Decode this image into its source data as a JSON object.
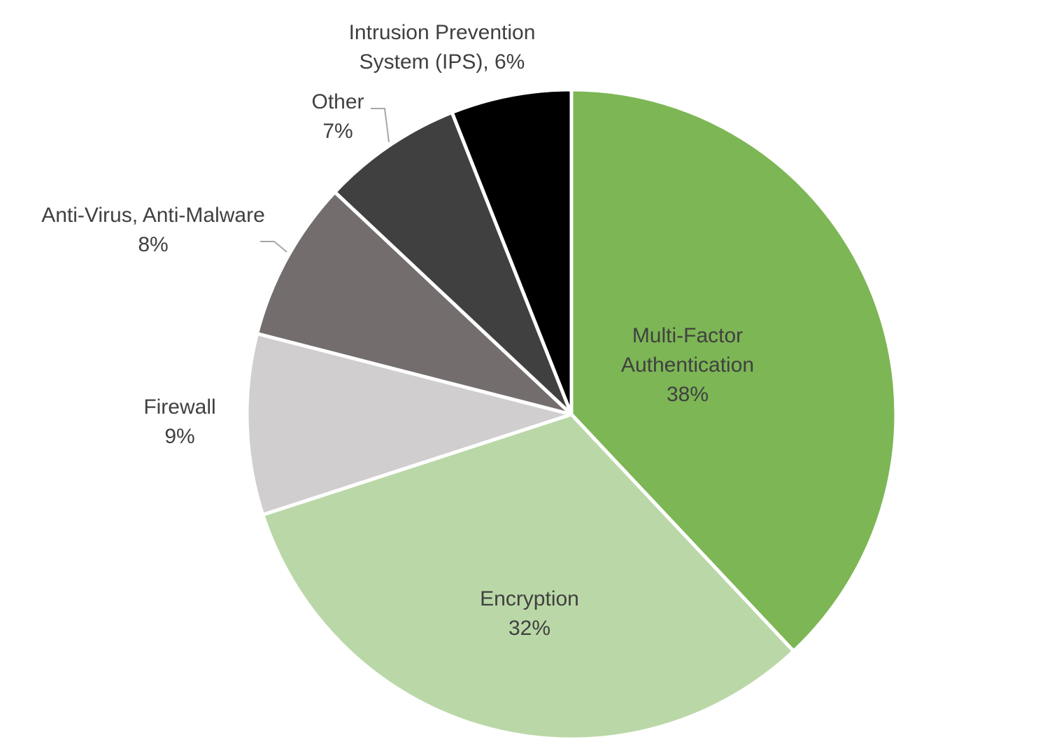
{
  "chart_data": {
    "type": "pie",
    "title": "",
    "slices": [
      {
        "name": "Multi-Factor Authentication",
        "value": 38,
        "line1": "Multi-Factor",
        "line2": "Authentication",
        "pct": "38%",
        "color": "#7DB655"
      },
      {
        "name": "Encryption",
        "value": 32,
        "line1": "Encryption",
        "line2": "",
        "pct": "32%",
        "color": "#BAD8A7"
      },
      {
        "name": "Firewall",
        "value": 9,
        "line1": "Firewall",
        "line2": "",
        "pct": "9%",
        "color": "#D0CECF"
      },
      {
        "name": "Anti-Virus, Anti-Malware",
        "value": 8,
        "line1": "Anti-Virus, Anti-Malware",
        "line2": "",
        "pct": "8%",
        "color": "#736E6D"
      },
      {
        "name": "Other",
        "value": 7,
        "line1": "Other",
        "line2": "",
        "pct": "7%",
        "color": "#404040"
      },
      {
        "name": "Intrusion Prevention System (IPS)",
        "value": 6,
        "line1": "Intrusion Prevention",
        "line2": "System (IPS), 6%",
        "pct": "",
        "color": "#000000"
      }
    ],
    "start_angle_deg": 0,
    "direction": "clockwise",
    "slice_border_color": "#ffffff",
    "legend": "none"
  }
}
